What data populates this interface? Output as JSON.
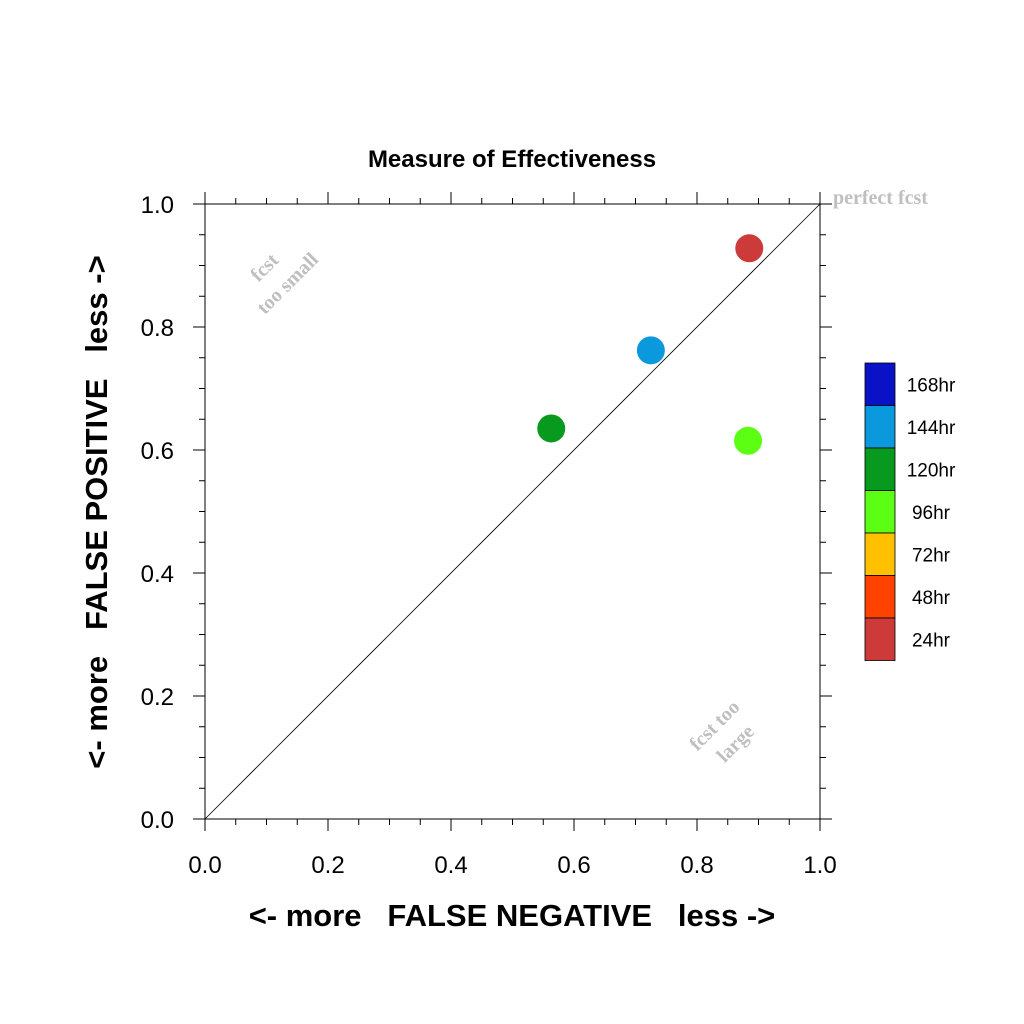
{
  "chart_data": {
    "type": "scatter",
    "title": "Measure of Effectiveness",
    "xlabel": "<- more   FALSE NEGATIVE   less ->",
    "ylabel": "<- more   FALSE POSITIVE   less ->",
    "xlim": [
      0.0,
      1.0
    ],
    "ylim": [
      0.0,
      1.0
    ],
    "x_ticks": [
      "0.0",
      "0.2",
      "0.4",
      "0.6",
      "0.8",
      "1.0"
    ],
    "y_ticks": [
      "0.0",
      "0.2",
      "0.4",
      "0.6",
      "0.8",
      "1.0"
    ],
    "grid": false,
    "reference_line": "diagonal",
    "annotations": [
      {
        "lines": [
          "perfect fcst"
        ]
      },
      {
        "lines": [
          "fcst",
          "too small"
        ]
      },
      {
        "lines": [
          "fcst too",
          "large"
        ]
      }
    ],
    "points": [
      {
        "label": "24hr",
        "x": 0.885,
        "y": 0.928,
        "color": "#cc3a3a"
      },
      {
        "label": "144hr",
        "x": 0.725,
        "y": 0.762,
        "color": "#0a99dd"
      },
      {
        "label": "120hr",
        "x": 0.563,
        "y": 0.635,
        "color": "#089a1e"
      },
      {
        "label": "96hr",
        "x": 0.883,
        "y": 0.615,
        "color": "#5cff14"
      }
    ],
    "legend": {
      "placement": "right",
      "entries": [
        {
          "label": "168hr",
          "color": "#0a12c8"
        },
        {
          "label": "144hr",
          "color": "#0a99dd"
        },
        {
          "label": "120hr",
          "color": "#089a1e"
        },
        {
          "label": "96hr",
          "color": "#5cff14"
        },
        {
          "label": "72hr",
          "color": "#ffc000"
        },
        {
          "label": "48hr",
          "color": "#ff4200"
        },
        {
          "label": "24hr",
          "color": "#cc3a3a"
        }
      ]
    }
  }
}
